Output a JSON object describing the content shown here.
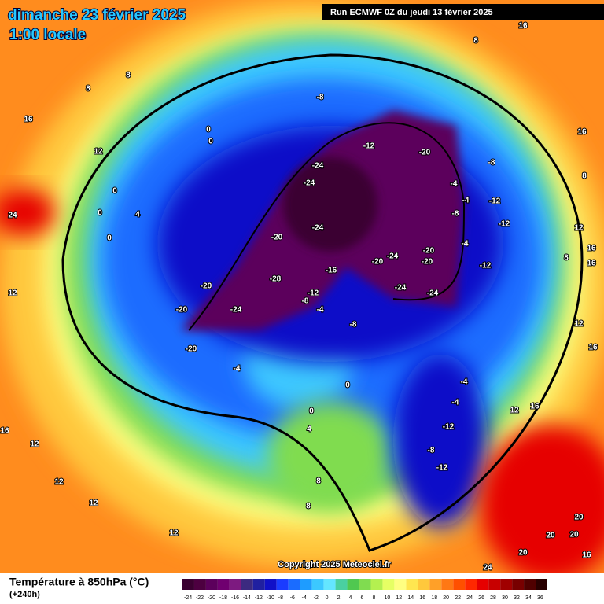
{
  "header": {
    "date": "dimanche 23 février 2025",
    "time": "1:00 locale",
    "run": "Run ECMWF 0Z du jeudi 13 février 2025"
  },
  "map": {
    "contour_labels": [
      8,
      16,
      8,
      8,
      16,
      12,
      0,
      0,
      -8,
      -12,
      -20,
      -8,
      16,
      8,
      -24,
      -24,
      -4,
      -4,
      -12,
      -8,
      -12,
      0,
      4,
      0,
      24,
      12,
      0,
      -20,
      -24,
      -4,
      8,
      16,
      16,
      -20,
      -24,
      -20,
      -20,
      -16,
      -12,
      -28,
      -20,
      -24,
      -24,
      12,
      -12,
      -8,
      -4,
      -20,
      -24,
      -8,
      12,
      -20,
      16,
      -4,
      -4,
      0,
      -4,
      12,
      16,
      0,
      -12,
      16,
      4,
      12,
      -8,
      -12,
      12,
      8,
      12,
      8,
      20,
      12,
      20,
      20,
      20,
      16,
      24
    ]
  },
  "copyright": "Copyright 2025 Meteociel.fr",
  "footer": {
    "title": "Température à 850hPa (°C)",
    "lead": "(+240h)"
  },
  "colorbar": {
    "ticks": [
      -24,
      -22,
      -20,
      -18,
      -16,
      -14,
      -12,
      -10,
      -8,
      -6,
      -4,
      -2,
      0,
      2,
      4,
      6,
      8,
      10,
      12,
      14,
      16,
      18,
      20,
      22,
      24,
      26,
      28,
      30,
      32,
      34,
      36
    ],
    "colors": [
      "#3a0030",
      "#4d0040",
      "#5c005c",
      "#700070",
      "#7d1a80",
      "#3c2a80",
      "#2020a0",
      "#1010c8",
      "#1a3cff",
      "#1a6cff",
      "#1e9cff",
      "#3cc8ff",
      "#64e6ff",
      "#4ad0a0",
      "#50c850",
      "#80dc50",
      "#b4f050",
      "#e6ff64",
      "#ffff82",
      "#ffe650",
      "#ffc83c",
      "#ffa028",
      "#ff7814",
      "#ff5000",
      "#ff2800",
      "#e60000",
      "#c80000",
      "#a00000",
      "#780000",
      "#500000",
      "#280000"
    ]
  }
}
